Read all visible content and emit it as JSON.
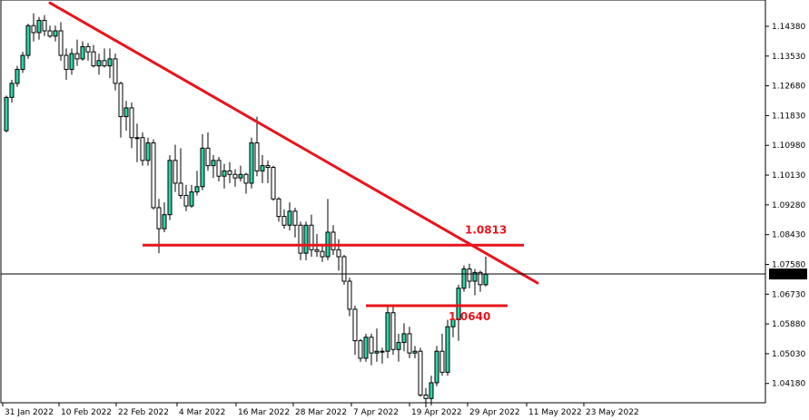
{
  "chart_data": {
    "type": "candlestick",
    "title": "",
    "xlabel": "",
    "ylabel": "",
    "x_tick_labels": [
      "31 Jan 2022",
      "10 Feb 2022",
      "22 Feb 2022",
      "4 Mar 2022",
      "16 Mar 2022",
      "28 Mar 2022",
      "7 Apr 2022",
      "19 Apr 2022",
      "29 Apr 2022",
      "11 May 2022",
      "23 May 2022"
    ],
    "y_tick_labels": [
      "1.14380",
      "1.13530",
      "1.12680",
      "1.11830",
      "1.10980",
      "1.10130",
      "1.09280",
      "1.08430",
      "1.07580",
      "1.06730",
      "1.05880",
      "1.05030",
      "1.04180"
    ],
    "ylim": [
      1.039,
      1.151
    ],
    "current_price": "1.07307",
    "colors": {
      "bull": "#2dd4a8",
      "bear": "#ffffff",
      "outline": "#000000",
      "trend": "#e8141c",
      "price_line": "#000000"
    },
    "candles": [
      [
        1.114,
        1.124,
        1.1135,
        1.1235
      ],
      [
        1.1235,
        1.1285,
        1.122,
        1.1275
      ],
      [
        1.1275,
        1.1325,
        1.1265,
        1.1315
      ],
      [
        1.1315,
        1.1365,
        1.1305,
        1.1355
      ],
      [
        1.1355,
        1.1445,
        1.1345,
        1.144
      ],
      [
        1.144,
        1.1475,
        1.1395,
        1.142
      ],
      [
        1.142,
        1.1465,
        1.14,
        1.1455
      ],
      [
        1.1455,
        1.147,
        1.141,
        1.1425
      ],
      [
        1.1425,
        1.144,
        1.1405,
        1.141
      ],
      [
        1.141,
        1.144,
        1.1395,
        1.1425
      ],
      [
        1.1425,
        1.145,
        1.134,
        1.1355
      ],
      [
        1.1355,
        1.1375,
        1.1285,
        1.1315
      ],
      [
        1.1315,
        1.1375,
        1.13,
        1.136
      ],
      [
        1.136,
        1.14,
        1.1325,
        1.1345
      ],
      [
        1.1345,
        1.1395,
        1.134,
        1.138
      ],
      [
        1.138,
        1.139,
        1.134,
        1.1365
      ],
      [
        1.1365,
        1.1385,
        1.132,
        1.1325
      ],
      [
        1.1325,
        1.136,
        1.13,
        1.134
      ],
      [
        1.134,
        1.1375,
        1.132,
        1.1325
      ],
      [
        1.1325,
        1.1375,
        1.129,
        1.1345
      ],
      [
        1.1345,
        1.136,
        1.1255,
        1.1275
      ],
      [
        1.1275,
        1.128,
        1.112,
        1.118
      ],
      [
        1.118,
        1.1225,
        1.114,
        1.1205
      ],
      [
        1.1205,
        1.122,
        1.109,
        1.112
      ],
      [
        1.112,
        1.116,
        1.105,
        1.112
      ],
      [
        1.112,
        1.1135,
        1.104,
        1.1055
      ],
      [
        1.1055,
        1.112,
        1.104,
        1.1105
      ],
      [
        1.1105,
        1.1115,
        1.0915,
        1.092
      ],
      [
        1.092,
        1.0945,
        1.079,
        1.086
      ],
      [
        1.086,
        1.0935,
        1.085,
        1.09
      ],
      [
        1.09,
        1.107,
        1.0885,
        1.1055
      ],
      [
        1.1055,
        1.11,
        1.0965,
        1.099
      ],
      [
        1.099,
        1.109,
        1.0945,
        1.0955
      ],
      [
        1.0955,
        1.0985,
        1.091,
        1.0925
      ],
      [
        1.0925,
        1.0985,
        1.092,
        1.0965
      ],
      [
        1.0965,
        1.1025,
        1.0955,
        1.098
      ],
      [
        1.098,
        1.113,
        1.097,
        1.109
      ],
      [
        1.109,
        1.1135,
        1.1025,
        1.104
      ],
      [
        1.104,
        1.107,
        1.1005,
        1.1055
      ],
      [
        1.1055,
        1.1065,
        1.0995,
        1.101
      ],
      [
        1.101,
        1.1045,
        1.0975,
        1.1025
      ],
      [
        1.1025,
        1.105,
        1.099,
        1.1015
      ],
      [
        1.1015,
        1.103,
        1.098,
        1.1005
      ],
      [
        1.1005,
        1.104,
        1.0995,
        1.1015
      ],
      [
        1.1015,
        1.102,
        1.096,
        1.099
      ],
      [
        1.099,
        1.112,
        1.0975,
        1.1105
      ],
      [
        1.1105,
        1.118,
        1.101,
        1.1025
      ],
      [
        1.1025,
        1.107,
        1.099,
        1.104
      ],
      [
        1.104,
        1.1055,
        1.099,
        1.1035
      ],
      [
        1.1035,
        1.104,
        1.094,
        1.0945
      ],
      [
        1.0945,
        1.095,
        1.088,
        1.0895
      ],
      [
        1.0895,
        1.0915,
        1.086,
        1.087
      ],
      [
        1.087,
        1.0935,
        1.0855,
        1.091
      ],
      [
        1.091,
        1.092,
        1.0835,
        1.087
      ],
      [
        1.087,
        1.088,
        1.077,
        1.079
      ],
      [
        1.079,
        1.088,
        1.077,
        1.087
      ],
      [
        1.087,
        1.09,
        1.078,
        1.08
      ],
      [
        1.08,
        1.0845,
        1.078,
        1.0795
      ],
      [
        1.0795,
        1.081,
        1.0765,
        1.078
      ],
      [
        1.078,
        1.0945,
        1.077,
        1.085
      ],
      [
        1.085,
        1.087,
        1.0785,
        1.08
      ],
      [
        1.08,
        1.083,
        1.074,
        1.078
      ],
      [
        1.078,
        1.0785,
        1.07,
        1.071
      ],
      [
        1.071,
        1.072,
        1.061,
        1.063
      ],
      [
        1.063,
        1.064,
        1.05,
        1.054
      ],
      [
        1.054,
        1.0545,
        1.048,
        1.049
      ],
      [
        1.049,
        1.056,
        1.048,
        1.055
      ],
      [
        1.055,
        1.056,
        1.047,
        1.0505
      ],
      [
        1.0505,
        1.0575,
        1.048,
        1.051
      ],
      [
        1.051,
        1.052,
        1.0475,
        1.051
      ],
      [
        1.051,
        1.064,
        1.049,
        1.062
      ],
      [
        1.062,
        1.064,
        1.05,
        1.0515
      ],
      [
        1.0515,
        1.056,
        1.048,
        1.0535
      ],
      [
        1.0535,
        1.059,
        1.051,
        1.056
      ],
      [
        1.056,
        1.058,
        1.049,
        1.0505
      ],
      [
        1.0505,
        1.0525,
        1.049,
        1.051
      ],
      [
        1.051,
        1.052,
        1.038,
        1.0385
      ],
      [
        1.0385,
        1.0405,
        1.035,
        1.0375
      ],
      [
        1.0375,
        1.044,
        1.0355,
        1.042
      ],
      [
        1.042,
        1.0525,
        1.041,
        1.051
      ],
      [
        1.051,
        1.056,
        1.044,
        1.045
      ],
      [
        1.045,
        1.06,
        1.044,
        1.058
      ],
      [
        1.058,
        1.062,
        1.055,
        1.06
      ],
      [
        1.06,
        1.07,
        1.054,
        1.069
      ],
      [
        1.069,
        1.0755,
        1.068,
        1.0745
      ],
      [
        1.0745,
        1.076,
        1.069,
        1.071
      ],
      [
        1.071,
        1.0745,
        1.067,
        1.0735
      ],
      [
        1.0735,
        1.074,
        1.068,
        1.07
      ],
      [
        1.07,
        1.078,
        1.0695,
        1.073
      ]
    ],
    "annotations": [
      {
        "type": "trendline",
        "from": {
          "candle": 8,
          "price": 1.1505
        },
        "to": {
          "candle": 97.5,
          "price": 1.0705
        }
      },
      {
        "type": "hline",
        "price": 1.0813,
        "from_candle": 25,
        "to_candle": 95,
        "label": "1.0813"
      },
      {
        "type": "hline",
        "price": 1.064,
        "from_candle": 66,
        "to_candle": 92,
        "label": "1.0640"
      }
    ]
  }
}
